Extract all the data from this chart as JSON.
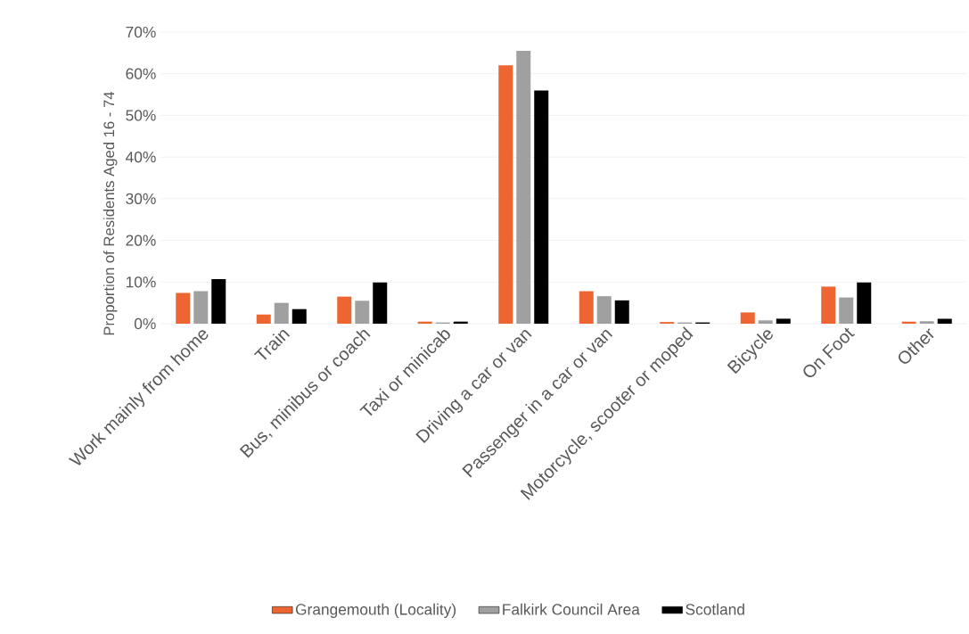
{
  "chart_data": {
    "type": "bar",
    "ylabel": "Proportion of Residents Aged 16 - 74",
    "categories": [
      "Work mainly from home",
      "Train",
      "Bus, minibus or  coach",
      "Taxi or minicab",
      "Driving a car or van",
      "Passenger in a car or van",
      "Motorcycle, scooter or moped",
      "Bicycle",
      "On Foot",
      "Other"
    ],
    "series": [
      {
        "name": "Grangemouth (Locality)",
        "color": "#ed6631",
        "values": [
          7.4,
          2.2,
          6.5,
          0.5,
          62,
          7.8,
          0.4,
          2.7,
          8.9,
          0.5
        ]
      },
      {
        "name": "Falkirk Council Area",
        "color": "#a0a0a0",
        "values": [
          7.8,
          5.0,
          5.5,
          0.3,
          65.5,
          6.6,
          0.3,
          0.8,
          6.3,
          0.6
        ]
      },
      {
        "name": "Scotland",
        "color": "#000000",
        "values": [
          10.7,
          3.5,
          9.9,
          0.5,
          56,
          5.6,
          0.3,
          1.2,
          9.9,
          1.2
        ]
      }
    ],
    "ylim": [
      0,
      70
    ],
    "yticks": [
      {
        "value": 0,
        "label": "0%"
      },
      {
        "value": 10,
        "label": "10%"
      },
      {
        "value": 20,
        "label": "20%"
      },
      {
        "value": 30,
        "label": "30%"
      },
      {
        "value": 40,
        "label": "40%"
      },
      {
        "value": 50,
        "label": "50%"
      },
      {
        "value": 60,
        "label": "60%"
      },
      {
        "value": 70,
        "label": "70%"
      }
    ],
    "grid": "y",
    "legend": "bottom"
  }
}
